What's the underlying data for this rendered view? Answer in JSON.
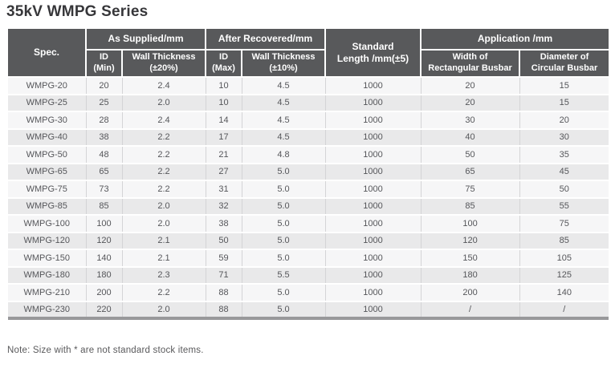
{
  "page": {
    "title": "35kV WMPG Series",
    "note": "Note: Size with * are not standard stock items."
  },
  "colors": {
    "header_background": "#58595b",
    "header_text": "#ffffff",
    "row_stripe_light": "#f6f6f7",
    "row_stripe_dark": "#e9e9ea",
    "body_text": "#55565a",
    "bottom_rule": "#98989a",
    "title_text": "#37373a"
  },
  "table": {
    "header": {
      "spec": "Spec.",
      "as_supplied": "As Supplied/mm",
      "after_recovered": "After Recovered/mm",
      "standard_length": {
        "line1": "Standard",
        "line2": "Length /mm(±5)"
      },
      "application": "Application /mm",
      "id_min": {
        "line1": "ID",
        "line2": "(Min)"
      },
      "wall_20": {
        "line1": "Wall Thickness",
        "line2": "(±20%)"
      },
      "id_max": {
        "line1": "ID",
        "line2": "(Max)"
      },
      "wall_10": {
        "line1": "Wall Thickness",
        "line2": "(±10%)"
      },
      "width_rect": {
        "line1": "Width of",
        "line2": "Rectangular Busbar"
      },
      "diam_circ": {
        "line1": "Diameter of",
        "line2": "Circular Busbar"
      }
    },
    "columns": [
      "spec",
      "id-min",
      "wall-thickness-20",
      "id-max",
      "wall-thickness-10",
      "standard-length",
      "width-rectangular-busbar",
      "diameter-circular-busbar"
    ],
    "rows": [
      [
        "WMPG-20",
        "20",
        "2.4",
        "10",
        "4.5",
        "1000",
        "20",
        "15"
      ],
      [
        "WMPG-25",
        "25",
        "2.0",
        "10",
        "4.5",
        "1000",
        "20",
        "15"
      ],
      [
        "WMPG-30",
        "28",
        "2.4",
        "14",
        "4.5",
        "1000",
        "30",
        "20"
      ],
      [
        "WMPG-40",
        "38",
        "2.2",
        "17",
        "4.5",
        "1000",
        "40",
        "30"
      ],
      [
        "WMPG-50",
        "48",
        "2.2",
        "21",
        "4.8",
        "1000",
        "50",
        "35"
      ],
      [
        "WMPG-65",
        "65",
        "2.2",
        "27",
        "5.0",
        "1000",
        "65",
        "45"
      ],
      [
        "WMPG-75",
        "73",
        "2.2",
        "31",
        "5.0",
        "1000",
        "75",
        "50"
      ],
      [
        "WMPG-85",
        "85",
        "2.0",
        "32",
        "5.0",
        "1000",
        "85",
        "55"
      ],
      [
        "WMPG-100",
        "100",
        "2.0",
        "38",
        "5.0",
        "1000",
        "100",
        "75"
      ],
      [
        "WMPG-120",
        "120",
        "2.1",
        "50",
        "5.0",
        "1000",
        "120",
        "85"
      ],
      [
        "WMPG-150",
        "140",
        "2.1",
        "59",
        "5.0",
        "1000",
        "150",
        "105"
      ],
      [
        "WMPG-180",
        "180",
        "2.3",
        "71",
        "5.5",
        "1000",
        "180",
        "125"
      ],
      [
        "WMPG-210",
        "200",
        "2.2",
        "88",
        "5.0",
        "1000",
        "200",
        "140"
      ],
      [
        "WMPG-230",
        "220",
        "2.0",
        "88",
        "5.0",
        "1000",
        "/",
        "/"
      ]
    ]
  }
}
